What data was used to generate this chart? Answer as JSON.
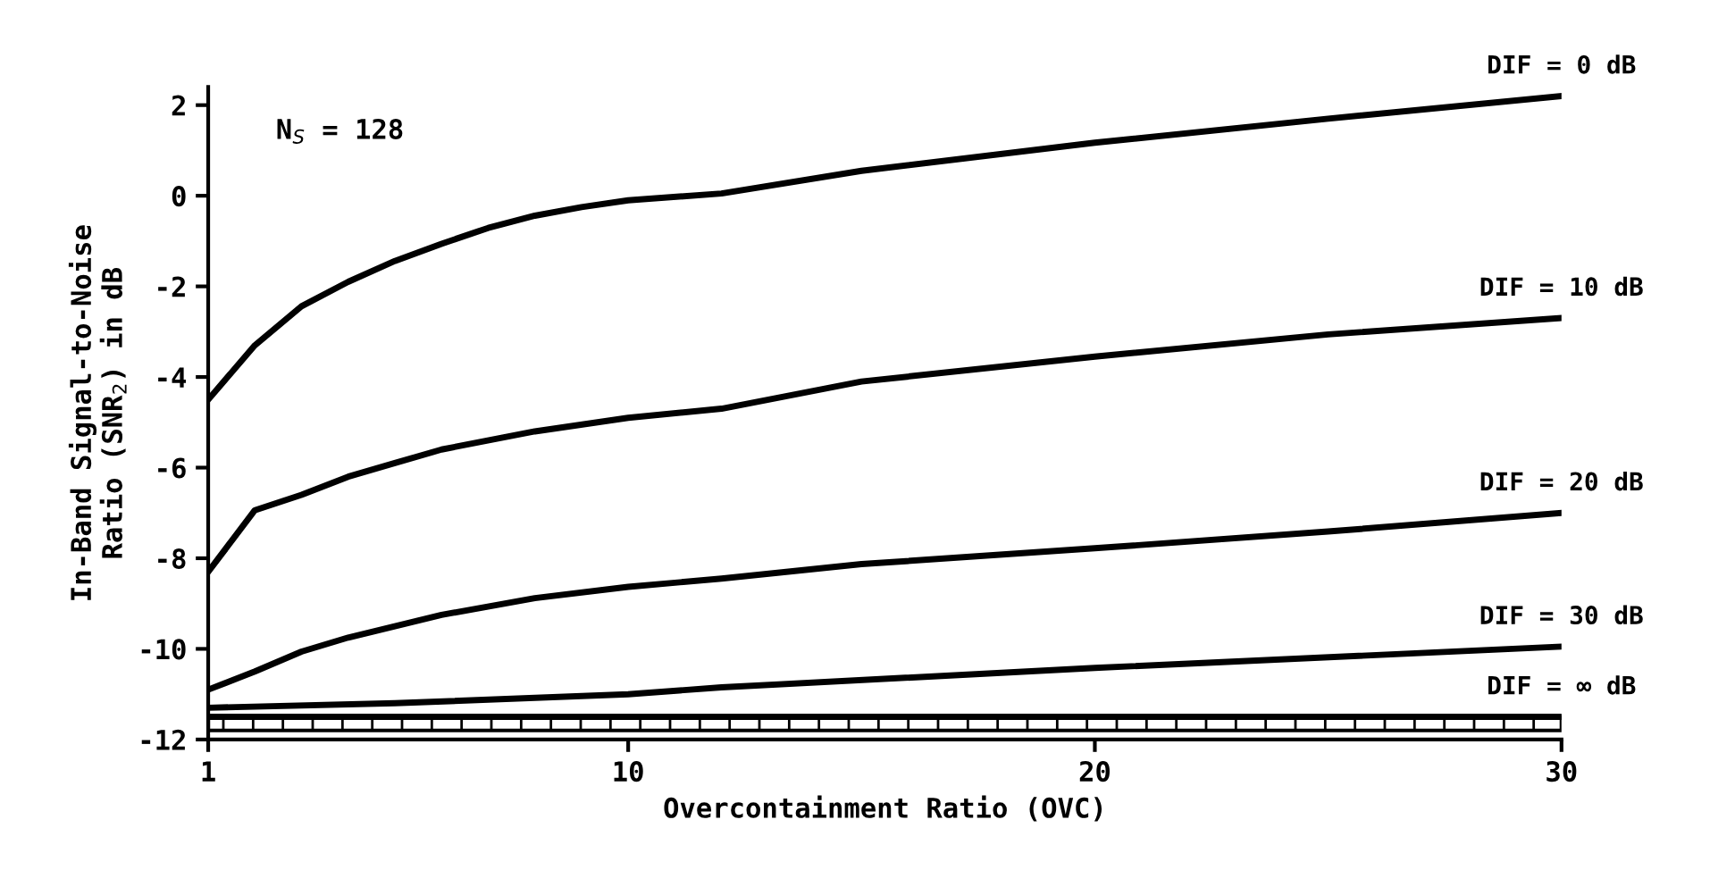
{
  "chart_data": {
    "type": "line",
    "xlabel": "Overcontainment Ratio (OVC)",
    "ylabel": "In-Band Signal-to-Noise\nRatio (SNR$_{2}$) in dB",
    "annotations": [
      "N$_{S}$ = 128"
    ],
    "xlim": [
      1,
      30
    ],
    "xticks": [
      1,
      10,
      20,
      30
    ],
    "ylim": [
      -12,
      2.4
    ],
    "yticks": [
      2,
      0,
      -2,
      -4,
      -6,
      -8,
      -10,
      -12
    ],
    "grid": false,
    "legend": false,
    "marker": "none",
    "line_style": "solid",
    "bands": [
      {
        "axis": "y",
        "from": -11.8,
        "to": -11.5,
        "color": "#000000"
      }
    ],
    "series": [
      {
        "name": "DIF = 0 dB",
        "color": "#000000",
        "x": [
          1,
          2,
          3,
          4,
          5,
          6,
          7,
          8,
          9,
          10,
          12,
          15,
          20,
          25,
          30
        ],
        "values": [
          -4.5,
          -3.3,
          -2.44,
          -1.9,
          -1.44,
          -1.06,
          -0.71,
          -0.44,
          -0.25,
          -0.1,
          0.05,
          0.55,
          1.17,
          1.7,
          2.2
        ]
      },
      {
        "name": "DIF = 10 dB",
        "color": "#000000",
        "x": [
          1,
          2,
          3,
          4,
          5,
          6,
          8,
          10,
          12,
          15,
          20,
          25,
          30
        ],
        "values": [
          -8.3,
          -6.94,
          -6.6,
          -6.2,
          -5.9,
          -5.6,
          -5.2,
          -4.9,
          -4.7,
          -4.1,
          -3.55,
          -3.06,
          -2.7
        ]
      },
      {
        "name": "DIF = 20 dB",
        "color": "#000000",
        "x": [
          1,
          2,
          3,
          4,
          5,
          6,
          8,
          10,
          12,
          15,
          20,
          25,
          30
        ],
        "values": [
          -10.9,
          -10.5,
          -10.06,
          -9.75,
          -9.5,
          -9.25,
          -8.88,
          -8.63,
          -8.45,
          -8.13,
          -7.78,
          -7.41,
          -7.0
        ]
      },
      {
        "name": "DIF = 30 dB",
        "color": "#000000",
        "x": [
          1,
          5,
          10,
          12,
          20,
          30
        ],
        "values": [
          -11.3,
          -11.2,
          -11.0,
          -10.85,
          -10.42,
          -9.95
        ]
      },
      {
        "name": "DIF = ∞ dB",
        "color": "#000000",
        "x": [
          1,
          30
        ],
        "values": [
          -11.5,
          -11.5
        ]
      }
    ]
  }
}
